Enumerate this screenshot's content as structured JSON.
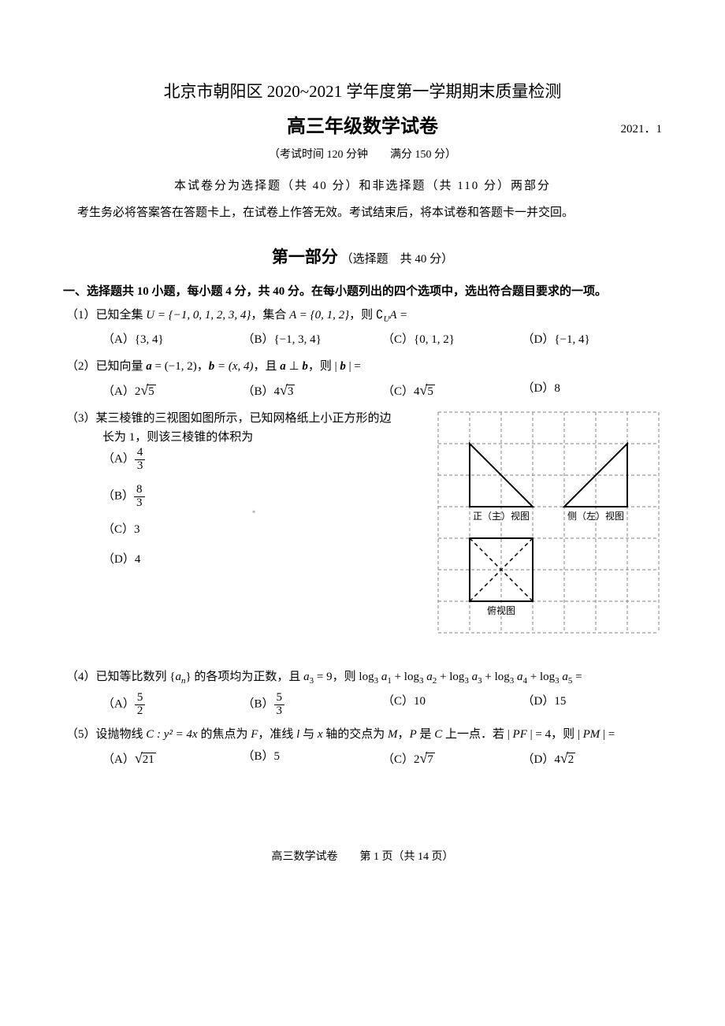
{
  "header": {
    "title1": "北京市朝阳区 2020~2021 学年度第一学期期末质量检测",
    "title2": "高三年级数学试卷",
    "date": "2021．1",
    "exam_info": "（考试时间 120 分钟　　满分 150 分）",
    "parts_note": "本试卷分为选择题（共 40 分）和非选择题（共 110 分）两部分",
    "candidate_note": "考生务必将答案答在答题卡上，在试卷上作答无效。考试结束后，将本试卷和答题卡一并交回。"
  },
  "part1": {
    "label_big": "第一部分",
    "label_small": "（选择题　共 40 分）",
    "section_hdr": "一、选择题共 10 小题，每小题 4 分，共 40 分。在每小题列出的四个选项中，选出符合题目要求的一项。"
  },
  "q1": {
    "num": "（1）",
    "stem_pre": "已知全集 ",
    "U_expr": "U = {−1, 0, 1, 2, 3, 4}",
    "mid1": "，集合 ",
    "A_expr": "A = {0, 1, 2}",
    "mid2": "，则 ",
    "comp": "∁",
    "compU": "U",
    "compA": "A =",
    "opts": {
      "A": "（A）{3, 4}",
      "B": "（B）{−1, 3, 4}",
      "C": "（C）{0, 1, 2}",
      "D": "（D）{−1, 4}"
    }
  },
  "q2": {
    "num": "（2）",
    "t1": "已知向量 ",
    "a": "a",
    "ae": " = (−1, 2)",
    "c1": "，",
    "b": "b",
    "be": " = (x, 4)",
    "c2": "，且 ",
    "perp": " ⊥ ",
    "c3": "，则 | ",
    "c4": " | =",
    "opts": {
      "A_pre": "（A）",
      "A_v": "2√5",
      "B_pre": "（B）",
      "B_v": "4√3",
      "C_pre": "（C）",
      "C_v": "4√5",
      "D_pre": "（D）",
      "D_v": "8"
    }
  },
  "q3": {
    "num": "（3）",
    "stem1": "某三棱锥的三视图如图所示，已知网格纸上小正方形的边",
    "stem2": "长为 1，则该三棱锥的体积为",
    "opts": {
      "A_pre": "（A）",
      "A_n": "4",
      "A_d": "3",
      "B_pre": "（B）",
      "B_n": "8",
      "B_d": "3",
      "C": "（C）3",
      "D": "（D）4"
    },
    "diagram": {
      "grid_color": "#808080",
      "line_color": "#000000",
      "cell": 40,
      "cols": 7,
      "rows": 7,
      "front_label": "正（主）视图",
      "side_label": "侧（左）视图",
      "top_label": "俯视图",
      "label_fontsize": 12
    }
  },
  "q4": {
    "num": "（4）",
    "t1": "已知等比数列 {",
    "an": "a",
    "ansub": "n",
    "t2": "} 的各项均为正数，且 ",
    "a3": "a",
    "a3s": "3",
    "a3v": " = 9",
    "t3": "，则 ",
    "log": "log",
    "base": "3",
    "plus": " + ",
    "eq": " =",
    "terms": [
      "1",
      "2",
      "3",
      "4",
      "5"
    ],
    "opts": {
      "A_pre": "（A）",
      "A_n": "5",
      "A_d": "2",
      "B_pre": "（B）",
      "B_n": "5",
      "B_d": "3",
      "C": "（C）10",
      "D": "（D）15"
    }
  },
  "q5": {
    "num": "（5）",
    "t1": "设抛物线 ",
    "Cexpr": "C : y² = 4x",
    "t2": " 的焦点为 ",
    "F": "F",
    "t3": "，准线 ",
    "l": "l",
    "t4": " 与 ",
    "x": "x",
    "t5": " 轴的交点为 ",
    "M": "M",
    "t6": "，",
    "P": "P",
    "t7": " 是 ",
    "C": "C",
    "t8": " 上一点．若 | ",
    "PF": "PF",
    "t9": " | = 4，则 | ",
    "PM": "PM",
    "t10": " | =",
    "opts": {
      "A_pre": "（A）",
      "A_v": "√21",
      "B": "（B）5",
      "C_pre": "（C）",
      "C_v": "2√7",
      "D_pre": "（D）",
      "D_v": "4√2"
    }
  },
  "footer": {
    "text": "高三数学试卷　　第 1 页（共 14 页）"
  }
}
